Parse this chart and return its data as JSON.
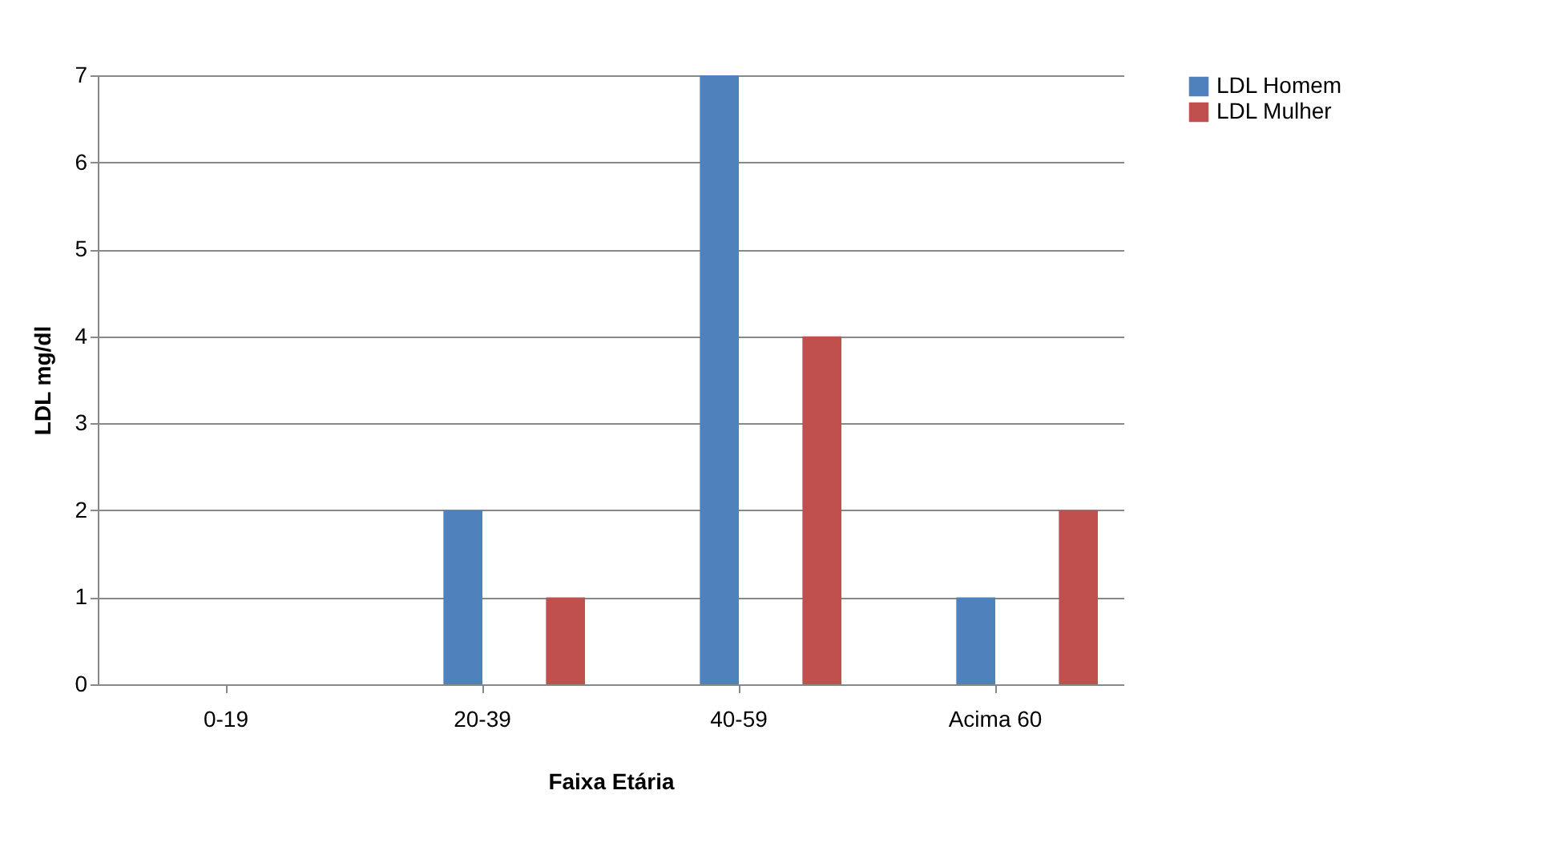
{
  "chart_data": {
    "type": "bar",
    "xlabel": "Faixa Etária",
    "ylabel": "LDL mg/dl",
    "categories": [
      "0-19",
      "20-39",
      "40-59",
      "Acima 60"
    ],
    "series": [
      {
        "name": "LDL Homem",
        "color": "#4f81bd",
        "values": [
          0,
          2,
          7,
          1
        ]
      },
      {
        "name": "LDL Mulher",
        "color": "#c0504d",
        "values": [
          0,
          1,
          4,
          2
        ]
      }
    ],
    "ylim": [
      0,
      7
    ],
    "yticks": [
      0,
      1,
      2,
      3,
      4,
      5,
      6,
      7
    ],
    "grid": "y",
    "legend": "right"
  }
}
